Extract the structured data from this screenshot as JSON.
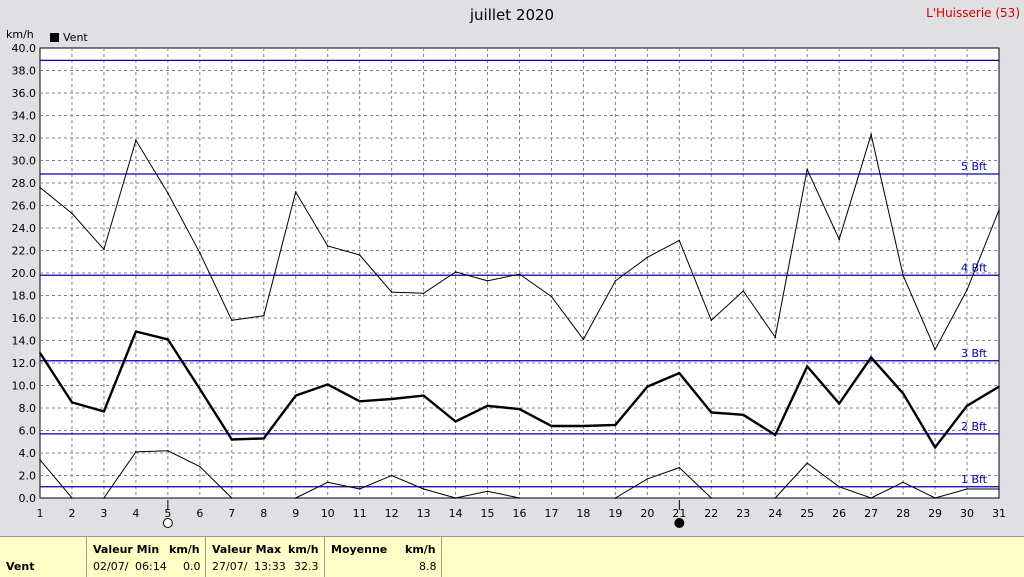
{
  "title": "juillet 2020",
  "station": "L'Huisserie (53)",
  "unit_label": "km/h",
  "legend_label": "Vent",
  "chart_data": {
    "type": "line",
    "x": [
      1,
      2,
      3,
      4,
      5,
      6,
      7,
      8,
      9,
      10,
      11,
      12,
      13,
      14,
      15,
      16,
      17,
      18,
      19,
      20,
      21,
      22,
      23,
      24,
      25,
      26,
      27,
      28,
      29,
      30,
      31
    ],
    "ylim": [
      0,
      40
    ],
    "yticks": [
      "0.0",
      "2.0",
      "4.0",
      "6.0",
      "8.0",
      "10.0",
      "12.0",
      "14.0",
      "16.0",
      "18.0",
      "20.0",
      "22.0",
      "24.0",
      "26.0",
      "28.0",
      "30.0",
      "32.0",
      "34.0",
      "36.0",
      "38.0",
      "40.0"
    ],
    "grid": true,
    "series": [
      {
        "name": "Vent",
        "role": "moyenne",
        "values": [
          12.9,
          8.5,
          7.7,
          14.8,
          14.1,
          9.7,
          5.2,
          5.3,
          9.1,
          10.1,
          8.6,
          8.8,
          9.1,
          6.8,
          8.2,
          7.9,
          6.4,
          6.4,
          6.5,
          9.9,
          11.1,
          7.6,
          7.4,
          5.6,
          11.7,
          8.4,
          12.5,
          9.3,
          4.5,
          8.2,
          9.9
        ]
      },
      {
        "role": "maximum",
        "values": [
          27.6,
          25.3,
          22.1,
          31.8,
          27.1,
          21.8,
          15.8,
          16.2,
          27.2,
          22.4,
          21.6,
          18.3,
          18.2,
          20.1,
          19.3,
          19.9,
          17.9,
          14.1,
          19.3,
          21.4,
          22.9,
          15.8,
          18.4,
          14.3,
          29.2,
          23.0,
          32.3,
          19.8,
          13.2,
          18.5,
          25.6
        ]
      },
      {
        "role": "minimum",
        "values": [
          3.4,
          0.0,
          0.0,
          4.1,
          4.2,
          2.8,
          0.0,
          null,
          0.0,
          1.4,
          0.8,
          2.0,
          0.8,
          0.0,
          0.6,
          0.0,
          null,
          null,
          0.0,
          1.7,
          2.7,
          0.0,
          null,
          0.0,
          3.1,
          1.0,
          0.0,
          1.4,
          0.0,
          0.8,
          0.8
        ]
      }
    ],
    "beaufort_lines": [
      {
        "label": "1 Bft",
        "value": 1.0
      },
      {
        "label": "2 Bft",
        "value": 5.7
      },
      {
        "label": "3 Bft",
        "value": 12.2
      },
      {
        "label": "4 Bft",
        "value": 19.8
      },
      {
        "label": "5 Bft",
        "value": 28.8
      },
      {
        "label": "",
        "value": 38.9
      }
    ],
    "moon_phases": [
      {
        "day": 5,
        "phase": "full"
      },
      {
        "day": 21,
        "phase": "new"
      }
    ]
  },
  "footer": {
    "row_label": "Vent",
    "min": {
      "header": "Valeur Min",
      "unit": "km/h",
      "date": "02/07/",
      "time": "06:14",
      "value": "0.0"
    },
    "max": {
      "header": "Valeur Max",
      "unit": "km/h",
      "date": "27/07/",
      "time": "13:33",
      "value": "32.3"
    },
    "avg": {
      "header": "Moyenne",
      "unit": "km/h",
      "value": "8.8"
    }
  },
  "colors": {
    "plot_bg": "#ffffff",
    "grid": "#808080",
    "bft": "#0000b0",
    "bft_label": "#0000b0",
    "line": "#000000"
  }
}
